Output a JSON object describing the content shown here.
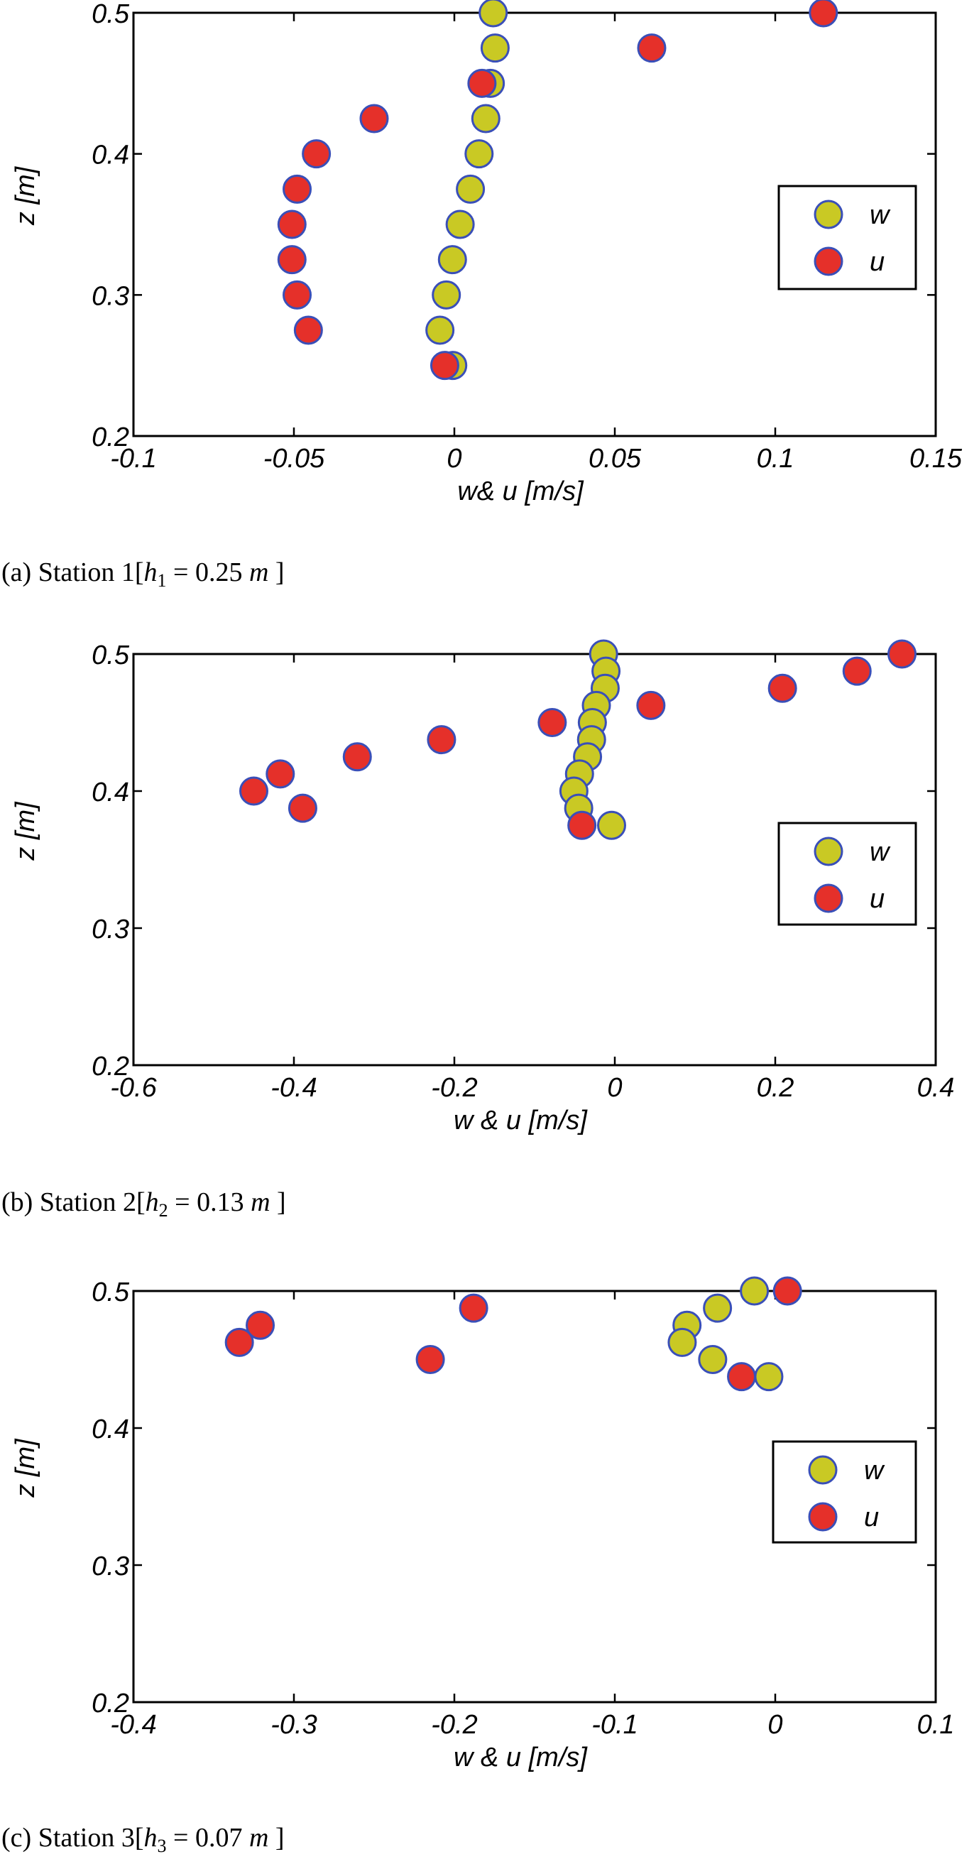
{
  "colors": {
    "w": "#c9c924",
    "u": "#e5302a",
    "marker_edge": "#3a4fb8",
    "axis": "#000000"
  },
  "chart_data": [
    {
      "type": "scatter",
      "xlabel": "w& u [m/s]",
      "ylabel": "z [m]",
      "xlim": [
        -0.1,
        0.15
      ],
      "ylim": [
        0.2,
        0.5
      ],
      "xticks": [
        -0.1,
        -0.05,
        0,
        0.05,
        0.1,
        0.15
      ],
      "xtick_labels": [
        "-0.1",
        "-0.05",
        "0",
        "0.05",
        "0.1",
        "0.15"
      ],
      "yticks": [
        0.2,
        0.3,
        0.4,
        0.5
      ],
      "ytick_labels": [
        "0.2",
        "0.3",
        "0.4",
        "0.5"
      ],
      "legend": {
        "placement": "center-right",
        "entries": [
          "w",
          "u"
        ]
      },
      "caption": {
        "label": "(a)",
        "station": "Station 1",
        "var": "h",
        "sub": "1",
        "eq": "=",
        "value": "0.25",
        "unit": "m"
      },
      "series": [
        {
          "name": "w",
          "x": [
            0.0121,
            0.0127,
            0.0112,
            0.0098,
            0.0077,
            0.005,
            0.0018,
            -0.0006,
            -0.0025,
            -0.0045,
            -0.0005
          ],
          "z": [
            0.5,
            0.475,
            0.45,
            0.425,
            0.4,
            0.375,
            0.35,
            0.325,
            0.3,
            0.275,
            0.25
          ]
        },
        {
          "name": "u",
          "x": [
            0.115,
            0.0615,
            0.0086,
            -0.025,
            -0.043,
            -0.049,
            -0.0506,
            -0.0506,
            -0.049,
            -0.0455,
            -0.003
          ],
          "z": [
            0.5,
            0.475,
            0.45,
            0.425,
            0.4,
            0.375,
            0.35,
            0.325,
            0.3,
            0.275,
            0.25
          ]
        }
      ]
    },
    {
      "type": "scatter",
      "xlabel": "w & u [m/s]",
      "ylabel": "z [m]",
      "xlim": [
        -0.6,
        0.4
      ],
      "ylim": [
        0.2,
        0.5
      ],
      "xticks": [
        -0.6,
        -0.4,
        -0.2,
        0,
        0.2,
        0.4
      ],
      "xtick_labels": [
        "-0.6",
        "-0.4",
        "-0.2",
        "0",
        "0.2",
        "0.4"
      ],
      "yticks": [
        0.2,
        0.3,
        0.4,
        0.5
      ],
      "ytick_labels": [
        "0.2",
        "0.3",
        "0.4",
        "0.5"
      ],
      "legend": {
        "placement": "center-right",
        "entries": [
          "w",
          "u"
        ]
      },
      "caption": {
        "label": "(b)",
        "station": "Station 2",
        "var": "h",
        "sub": "2",
        "eq": "=",
        "value": "0.13",
        "unit": "m"
      },
      "series": [
        {
          "name": "w",
          "x": [
            -0.014,
            -0.011,
            -0.012,
            -0.023,
            -0.028,
            -0.029,
            -0.034,
            -0.044,
            -0.051,
            -0.045,
            -0.004
          ],
          "z": [
            0.5,
            0.4875,
            0.475,
            0.4625,
            0.45,
            0.4375,
            0.425,
            0.4125,
            0.4,
            0.3875,
            0.375
          ]
        },
        {
          "name": "u",
          "x": [
            0.358,
            0.302,
            0.209,
            0.045,
            -0.078,
            -0.216,
            -0.321,
            -0.417,
            -0.45,
            -0.389,
            -0.041
          ],
          "z": [
            0.5,
            0.4875,
            0.475,
            0.4625,
            0.45,
            0.4375,
            0.425,
            0.4125,
            0.4,
            0.3875,
            0.375
          ]
        }
      ]
    },
    {
      "type": "scatter",
      "xlabel": "w & u [m/s]",
      "ylabel": "z [m]",
      "xlim": [
        -0.4,
        0.1
      ],
      "ylim": [
        0.2,
        0.5
      ],
      "xticks": [
        -0.4,
        -0.3,
        -0.2,
        -0.1,
        0,
        0.1
      ],
      "xtick_labels": [
        "-0.4",
        "-0.3",
        "-0.2",
        "-0.1",
        "0",
        "0.1"
      ],
      "yticks": [
        0.2,
        0.3,
        0.4,
        0.5
      ],
      "ytick_labels": [
        "0.2",
        "0.3",
        "0.4",
        "0.5"
      ],
      "legend": {
        "placement": "center-right",
        "entries": [
          "w",
          "u"
        ]
      },
      "caption": {
        "label": "(c)",
        "station": "Station 3",
        "var": "h",
        "sub": "3",
        "eq": "=",
        "value": "0.07",
        "unit": "m"
      },
      "series": [
        {
          "name": "w",
          "x": [
            -0.013,
            -0.036,
            -0.055,
            -0.058,
            -0.039,
            -0.004
          ],
          "z": [
            0.5,
            0.4875,
            0.475,
            0.4625,
            0.45,
            0.4375
          ]
        },
        {
          "name": "u",
          "x": [
            0.0076,
            -0.188,
            -0.321,
            -0.334,
            -0.215,
            -0.021
          ],
          "z": [
            0.5,
            0.4875,
            0.475,
            0.4625,
            0.45,
            0.4375
          ]
        }
      ]
    }
  ]
}
